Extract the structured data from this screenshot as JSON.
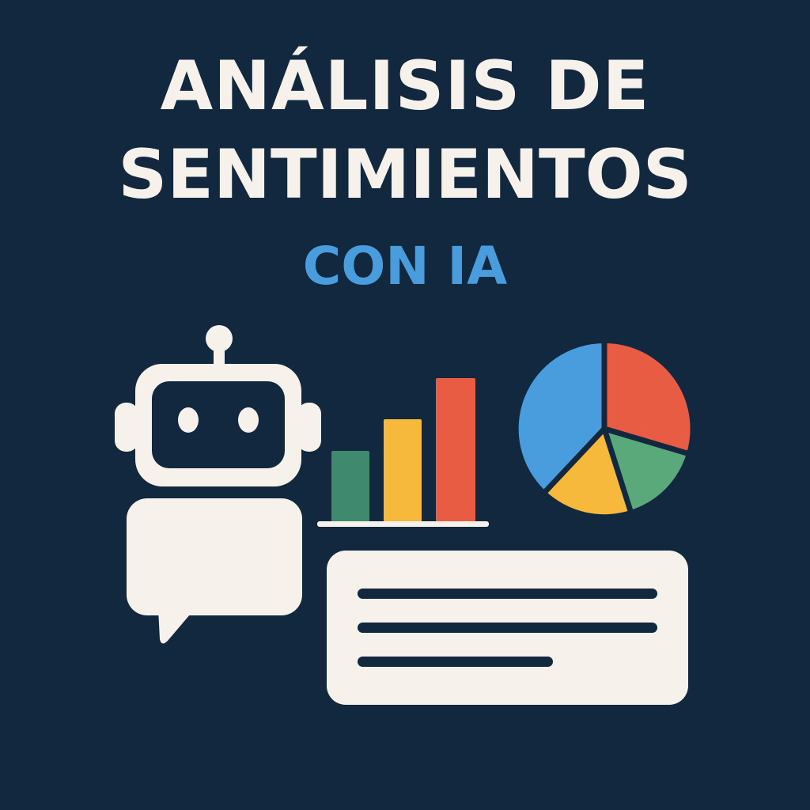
{
  "title": {
    "line1": "ANÁLISIS DE",
    "line2": "SENTIMIENTOS",
    "subtitle": "CON IA"
  },
  "colors": {
    "background": "#11283f",
    "text": "#f6f1ea",
    "accent_blue": "#4a9ddd",
    "green": "#3f8a6e",
    "yellow": "#f6b93b",
    "red": "#e85c43",
    "light_green": "#5aa97a"
  },
  "icons": {
    "robot": "robot-icon",
    "bar_chart": "bar-chart-icon",
    "pie_chart": "pie-chart-icon",
    "speech_bubble": "speech-bubble-icon",
    "text_card": "text-card-icon"
  }
}
